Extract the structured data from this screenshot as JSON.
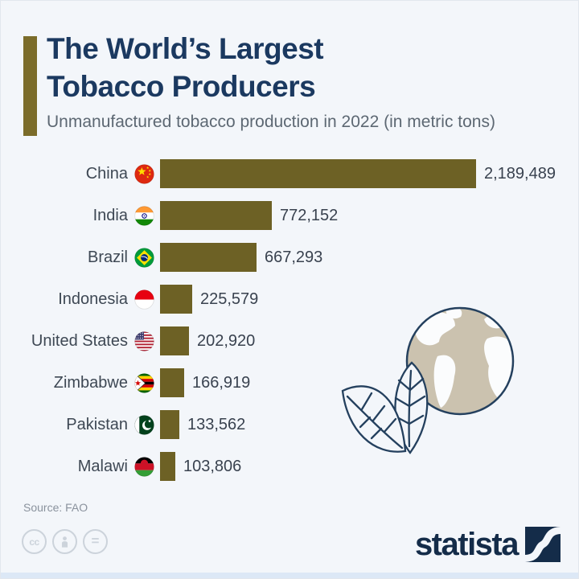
{
  "title": {
    "line1": "The World’s Largest",
    "line2": "Tobacco Producers"
  },
  "subtitle": "Unmanufactured tobacco production in 2022 (in metric tons)",
  "source": "Source: FAO",
  "branding": {
    "logo_text": "statista"
  },
  "license_icons": [
    "cc-icon",
    "attribution-person-icon",
    "equals-icon"
  ],
  "colors": {
    "background": "#f3f6fa",
    "bar": "#6d6125",
    "accent_bar": "#7b6c2a",
    "title": "#1b3960",
    "subtitle": "#5d6873",
    "label": "#3e4854",
    "value": "#39424f",
    "source": "#8a929d",
    "logo_navy": "#142c49",
    "illustration_outline": "#24405e",
    "globe_land": "#cbc2af"
  },
  "chart_data": {
    "type": "bar",
    "orientation": "horizontal",
    "title": "The World's Largest Tobacco Producers",
    "subtitle": "Unmanufactured tobacco production in 2022 (in metric tons)",
    "categories": [
      "China",
      "India",
      "Brazil",
      "Indonesia",
      "United States",
      "Zimbabwe",
      "Pakistan",
      "Malawi"
    ],
    "values": [
      2189489,
      772152,
      667293,
      225579,
      202920,
      166919,
      133562,
      103806
    ],
    "value_labels": [
      "2,189,489",
      "772,152",
      "667,293",
      "225,579",
      "202,920",
      "166,919",
      "133,562",
      "103,806"
    ],
    "flag_codes": [
      "china",
      "india",
      "brazil",
      "indonesia",
      "united-states",
      "zimbabwe",
      "pakistan",
      "malawi"
    ],
    "xlabel": "",
    "ylabel": "",
    "xlim": [
      0,
      2189489
    ],
    "grid": false,
    "legend": false,
    "data_labels": true
  }
}
